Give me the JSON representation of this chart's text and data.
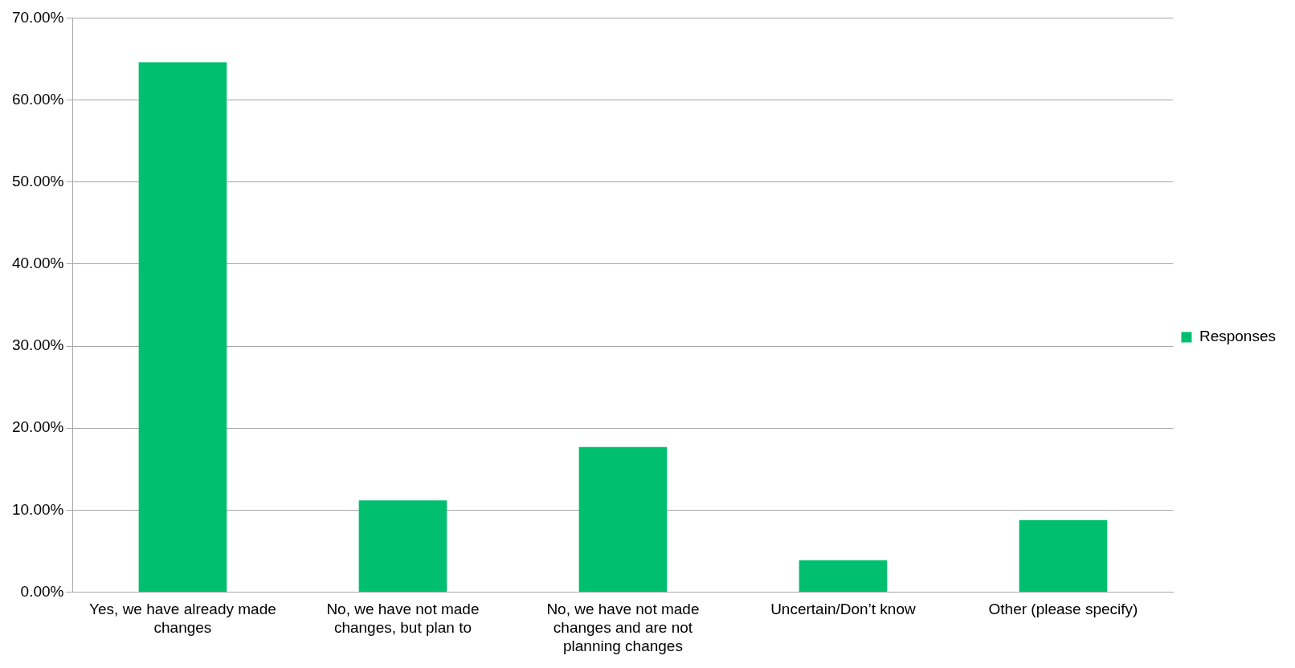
{
  "chart_data": {
    "type": "bar",
    "categories": [
      "Yes, we have already made changes",
      "No, we have not made changes, but plan to",
      "No, we have not made changes and are not planning changes",
      "Uncertain/Don’t know",
      "Other (please specify)"
    ],
    "series": [
      {
        "name": "Responses",
        "color": "#00bf6f",
        "values": [
          64.6,
          11.2,
          17.7,
          3.9,
          8.8
        ]
      }
    ],
    "ylim": [
      0,
      70
    ],
    "yticks": [
      {
        "value": 0,
        "label": "0.00%"
      },
      {
        "value": 10,
        "label": "10.00%"
      },
      {
        "value": 20,
        "label": "20.00%"
      },
      {
        "value": 30,
        "label": "30.00%"
      },
      {
        "value": 40,
        "label": "40.00%"
      },
      {
        "value": 50,
        "label": "50.00%"
      },
      {
        "value": 60,
        "label": "60.00%"
      },
      {
        "value": 70,
        "label": "70.00%"
      }
    ],
    "grid": "y",
    "legend": "right"
  }
}
